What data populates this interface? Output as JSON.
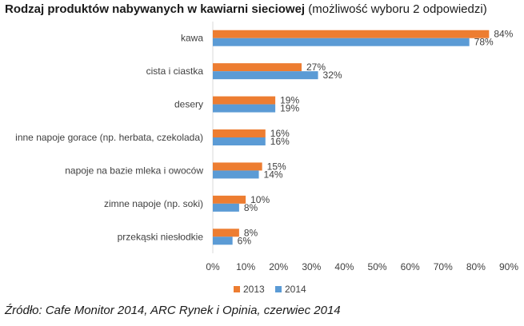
{
  "title": {
    "bold": "Rodzaj produktów nabywanych w kawiarni sieciowej",
    "sub": "(możliwość wyboru 2 odpowiedzi)"
  },
  "source": "Źródło: Cafe Monitor 2014, ARC Rynek i Opinia, czerwiec 2014",
  "chart_data": {
    "type": "bar",
    "orientation": "horizontal",
    "categories": [
      "kawa",
      "cista i ciastka",
      "desery",
      "inne napoje gorace (np. herbata, czekolada)",
      "napoje na bazie mleka i owoców",
      "zimne napoje (np. soki)",
      "przekąski niesłodkie"
    ],
    "series": [
      {
        "name": "2013",
        "color": "#ED7D31",
        "values": [
          84,
          27,
          19,
          16,
          15,
          10,
          8
        ]
      },
      {
        "name": "2014",
        "color": "#5B9BD5",
        "values": [
          78,
          32,
          19,
          16,
          14,
          8,
          6
        ]
      }
    ],
    "x_ticks": [
      "0%",
      "10%",
      "20%",
      "30%",
      "40%",
      "50%",
      "60%",
      "70%",
      "80%",
      "90%"
    ],
    "xlim": [
      0,
      90
    ],
    "value_suffix": "%",
    "legend_position": "bottom",
    "grid": false
  }
}
